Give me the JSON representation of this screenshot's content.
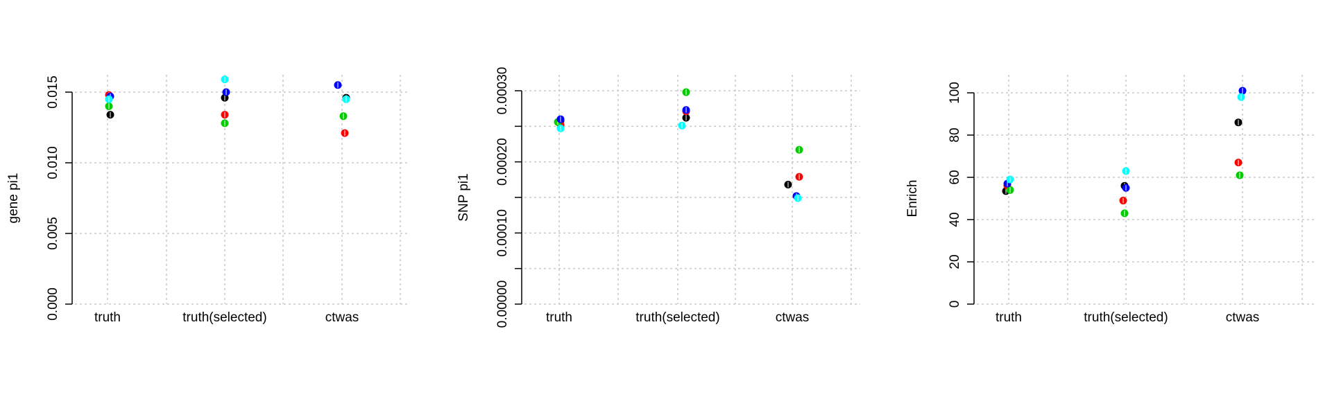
{
  "chart_data": [
    {
      "type": "scatter",
      "ylabel": "gene pi1",
      "categories": [
        "truth",
        "truth(selected)",
        "ctwas"
      ],
      "ylim": [
        0,
        0.016
      ],
      "yticks": [
        0,
        0.005,
        0.01,
        0.015
      ],
      "ytick_labels": [
        "0.000",
        "0.005",
        "0.010",
        "0.015"
      ],
      "grid": true,
      "series": [
        {
          "color": "#000000",
          "values": [
            0.0134,
            0.0146,
            0.0146
          ]
        },
        {
          "color": "#ff0000",
          "values": [
            0.0148,
            0.0134,
            0.0121
          ]
        },
        {
          "color": "#00cc00",
          "values": [
            0.014,
            0.0128,
            0.0133
          ]
        },
        {
          "color": "#0000ff",
          "values": [
            0.0147,
            0.015,
            0.0155
          ]
        },
        {
          "color": "#00ffff",
          "values": [
            0.0145,
            0.0159,
            0.0145
          ]
        }
      ]
    },
    {
      "type": "scatter",
      "ylabel": "SNP pi1",
      "categories": [
        "truth",
        "truth(selected)",
        "ctwas"
      ],
      "ylim": [
        0,
        0.0003
      ],
      "yticks": [
        0,
        5e-05,
        0.0001,
        0.00015,
        0.0002,
        0.00025,
        0.0003
      ],
      "ytick_labels": [
        "0.00000",
        "",
        "0.00010",
        "",
        "0.00020",
        "",
        "0.00030"
      ],
      "grid": true,
      "series": [
        {
          "color": "#000000",
          "values": [
            0.000258,
            0.000262,
            0.000168
          ]
        },
        {
          "color": "#ff0000",
          "values": [
            0.000252,
            0.000271,
            0.000179
          ]
        },
        {
          "color": "#00cc00",
          "values": [
            0.000256,
            0.000298,
            0.000217
          ]
        },
        {
          "color": "#0000ff",
          "values": [
            0.00026,
            0.000273,
            0.000152
          ]
        },
        {
          "color": "#00ffff",
          "values": [
            0.000247,
            0.000251,
            0.000149
          ]
        }
      ]
    },
    {
      "type": "scatter",
      "ylabel": "Enrich",
      "categories": [
        "truth",
        "truth(selected)",
        "ctwas"
      ],
      "ylim": [
        0,
        102
      ],
      "yticks": [
        0,
        20,
        40,
        60,
        80,
        100
      ],
      "ytick_labels": [
        "0",
        "20",
        "40",
        "60",
        "80",
        "100"
      ],
      "grid": true,
      "series": [
        {
          "color": "#000000",
          "values": [
            53.5,
            56,
            86
          ]
        },
        {
          "color": "#ff0000",
          "values": [
            56,
            49,
            67
          ]
        },
        {
          "color": "#00cc00",
          "values": [
            54,
            43,
            61
          ]
        },
        {
          "color": "#0000ff",
          "values": [
            57,
            55,
            101
          ]
        },
        {
          "color": "#00ffff",
          "values": [
            59,
            63,
            98
          ]
        }
      ]
    }
  ]
}
